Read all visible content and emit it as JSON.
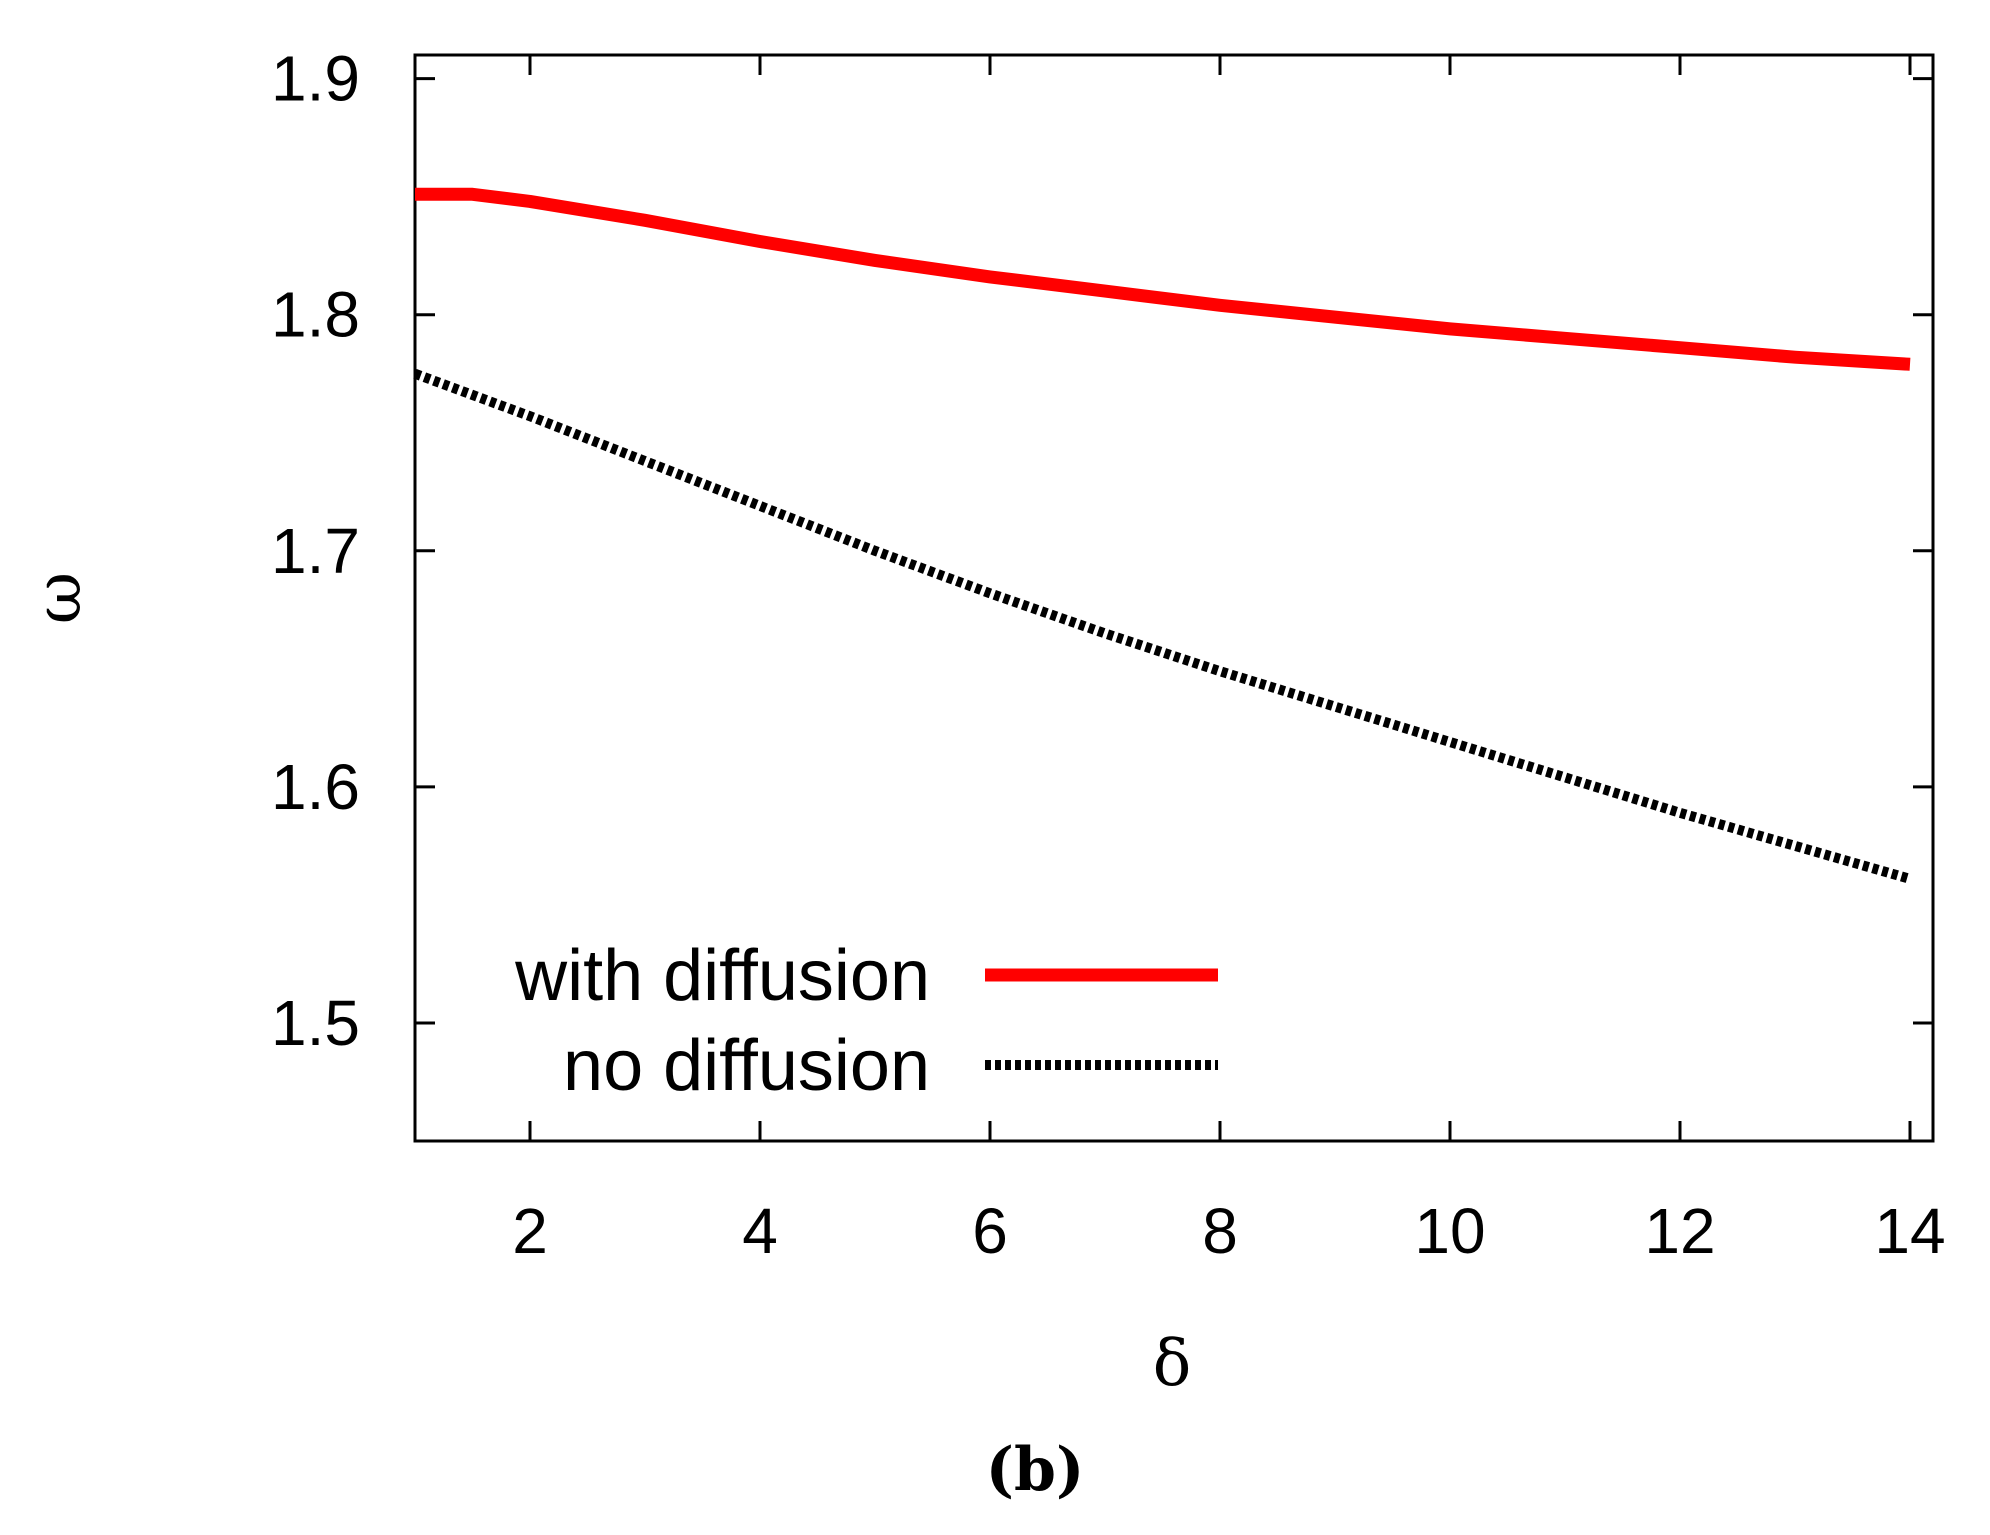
{
  "chart_data": {
    "type": "line",
    "title": "",
    "caption": "(b)",
    "xlabel": "δ",
    "ylabel": "ω",
    "xlim": [
      1,
      14.2
    ],
    "ylim": [
      1.45,
      1.91
    ],
    "xticks": [
      2,
      4,
      6,
      8,
      10,
      12,
      14
    ],
    "xtick_labels": [
      "2",
      "4",
      "6",
      "8",
      "10",
      "12",
      "14"
    ],
    "yticks": [
      1.5,
      1.6,
      1.7,
      1.8,
      1.9
    ],
    "ytick_labels": [
      "1.5",
      "1.6",
      "1.7",
      "1.8",
      "1.9"
    ],
    "grid": false,
    "legend_position": "bottom-left",
    "series": [
      {
        "name": "with diffusion",
        "color": "#ff0000",
        "style": "solid",
        "x": [
          1,
          1.5,
          2,
          3,
          4,
          5,
          6,
          7,
          8,
          9,
          10,
          11,
          12,
          13,
          14
        ],
        "y": [
          1.851,
          1.851,
          1.848,
          1.84,
          1.831,
          1.823,
          1.816,
          1.81,
          1.804,
          1.799,
          1.794,
          1.79,
          1.786,
          1.782,
          1.779
        ]
      },
      {
        "name": "no diffusion",
        "color": "#000000",
        "style": "dotted",
        "x": [
          1,
          2,
          3,
          4,
          5,
          6,
          7,
          8,
          9,
          10,
          11,
          12,
          13,
          14
        ],
        "y": [
          1.775,
          1.757,
          1.738,
          1.719,
          1.7,
          1.682,
          1.665,
          1.649,
          1.634,
          1.619,
          1.604,
          1.589,
          1.575,
          1.561
        ]
      }
    ]
  }
}
